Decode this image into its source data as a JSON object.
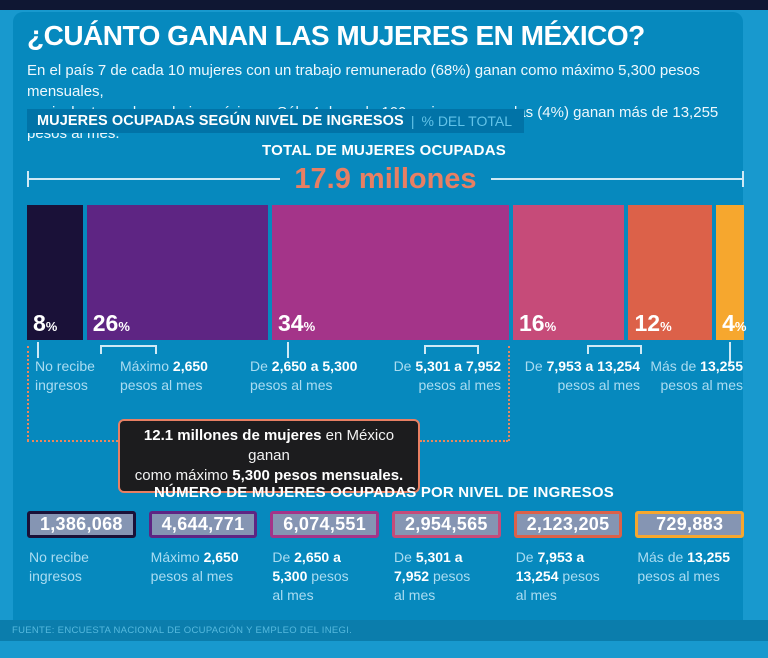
{
  "page": {
    "bg": "#1899ce",
    "panel_bg": "#0689be",
    "top_strip": "#0f1733",
    "accent_coral": "#e87f63",
    "dotted_line": "#e8875f"
  },
  "header": {
    "title": "¿CUÁNTO GANAN LAS MUJERES EN MÉXICO?",
    "intro_line1": "En el país 7 de cada 10 mujeres con un trabajo remunerado (68%) ganan como máximo 5,300 pesos mensuales,",
    "intro_line2": "equivalentes a dos salarios mínimos. Sólo 4 de cada 100 mujeres ocupadas (4%) ganan más de 13,255 pesos al mes."
  },
  "chart_section": {
    "title": "MUJERES OCUPADAS SEGÚN NIVEL DE INGRESOS",
    "separator": "|",
    "subtitle": "% DEL TOTAL",
    "total_title": "TOTAL DE MUJERES OCUPADAS",
    "total_value": "17.9 millones"
  },
  "chart_data": {
    "type": "bar",
    "title": "Mujeres ocupadas según nivel de ingresos",
    "unit": "% del total",
    "unit_symbol": "%",
    "total_label": "17.9 millones",
    "categories": [
      "No recibe ingresos",
      "Máximo 2,650 pesos al mes",
      "De 2,650 a 5,300 pesos al mes",
      "De 5,301 a 7,952 pesos al mes",
      "De 7,953 a 13,254 pesos al mes",
      "Más de 13,255 pesos al mes"
    ],
    "series": [
      {
        "name": "% del total",
        "values": [
          8,
          26,
          34,
          16,
          12,
          4
        ]
      },
      {
        "name": "Número de mujeres ocupadas",
        "values": [
          "1,386,068",
          "4,644,771",
          "6,074,551",
          "2,954,565",
          "2,123,205",
          "729,883"
        ]
      }
    ],
    "colors": [
      "#1a1138",
      "#5e2583",
      "#a43489",
      "#c64b79",
      "#dc6149",
      "#f6a72e"
    ],
    "box_fill": "#8595b3",
    "bar_labels_rich": [
      [
        [
          [
            "r",
            "No recibe"
          ]
        ],
        [
          [
            "r",
            "ingresos"
          ]
        ]
      ],
      [
        [
          [
            "r",
            "Máximo "
          ],
          [
            "b",
            "2,650"
          ]
        ],
        [
          [
            "r",
            "pesos al mes"
          ]
        ]
      ],
      [
        [
          [
            "r",
            "De "
          ],
          [
            "b",
            "2,650 a 5,300"
          ]
        ],
        [
          [
            "r",
            "pesos al mes"
          ]
        ]
      ],
      [
        [
          [
            "r",
            "De "
          ],
          [
            "b",
            "5,301 a 7,952"
          ]
        ],
        [
          [
            "r",
            "pesos al  mes"
          ]
        ]
      ],
      [
        [
          [
            "r",
            "De "
          ],
          [
            "b",
            "7,953 a 13,254"
          ]
        ],
        [
          [
            "r",
            "pesos al mes"
          ]
        ]
      ],
      [
        [
          [
            "r",
            "Más de "
          ],
          [
            "b",
            "13,255"
          ]
        ],
        [
          [
            "r",
            "pesos al mes"
          ]
        ]
      ]
    ],
    "box_labels_rich": [
      [
        [
          [
            "r",
            "No recibe"
          ]
        ],
        [
          [
            "r",
            "ingresos"
          ]
        ]
      ],
      [
        [
          [
            "r",
            "Máximo "
          ],
          [
            "b",
            "2,650"
          ]
        ],
        [
          [
            "r",
            "pesos al mes"
          ]
        ]
      ],
      [
        [
          [
            "r",
            "De "
          ],
          [
            "b",
            "2,650 a"
          ]
        ],
        [
          [
            "b",
            "5,300"
          ],
          [
            "r",
            " pesos"
          ]
        ],
        [
          [
            "r",
            "al mes"
          ]
        ]
      ],
      [
        [
          [
            "r",
            "De "
          ],
          [
            "b",
            "5,301 a"
          ]
        ],
        [
          [
            "b",
            "7,952"
          ],
          [
            "r",
            " pesos"
          ]
        ],
        [
          [
            "r",
            "al  mes"
          ]
        ]
      ],
      [
        [
          [
            "r",
            "De "
          ],
          [
            "b",
            "7,953 a"
          ]
        ],
        [
          [
            "b",
            "13,254"
          ],
          [
            "r",
            " pesos"
          ]
        ],
        [
          [
            "r",
            "al mes"
          ]
        ]
      ],
      [
        [
          [
            "r",
            "Más de "
          ],
          [
            "b",
            "13,255"
          ]
        ],
        [
          [
            "r",
            "pesos al mes"
          ]
        ]
      ]
    ]
  },
  "callout": {
    "bg": "#1c1c1e",
    "border": "#e87f63",
    "lines": [
      [
        [
          "b",
          "12.1 millones de mujeres"
        ],
        [
          "r",
          " en México ganan"
        ]
      ],
      [
        [
          "r",
          "como máximo "
        ],
        [
          "b",
          "5,300 pesos mensuales."
        ]
      ]
    ]
  },
  "numbers_section": {
    "title": "NÚMERO DE MUJERES OCUPADAS POR NIVEL DE INGRESOS"
  },
  "footer": {
    "source": "FUENTE: ENCUESTA NACIONAL DE OCUPACIÓN Y EMPLEO DEL INEGI."
  }
}
